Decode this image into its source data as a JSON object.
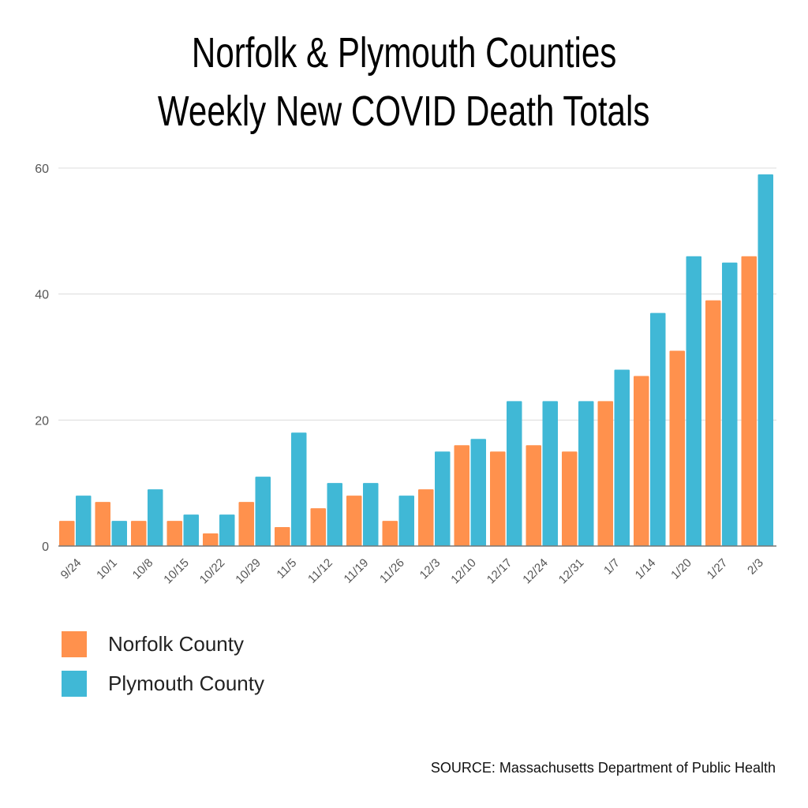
{
  "chart_data": {
    "type": "bar",
    "title": [
      "Norfolk & Plymouth Counties",
      "Weekly New COVID Death Totals"
    ],
    "xlabel": "",
    "ylabel": "",
    "ylim": [
      0,
      60
    ],
    "yticks": [
      0,
      20,
      40,
      60
    ],
    "grid": true,
    "legend_position": "bottom-left",
    "categories": [
      "9/24",
      "10/1",
      "10/8",
      "10/15",
      "10/22",
      "10/29",
      "11/5",
      "11/12",
      "11/19",
      "11/26",
      "12/3",
      "12/10",
      "12/17",
      "12/24",
      "12/31",
      "1/7",
      "1/14",
      "1/20",
      "1/27",
      "2/3"
    ],
    "series": [
      {
        "name": "Norfolk County",
        "color": "#FF914D",
        "values": [
          4,
          7,
          4,
          4,
          2,
          7,
          3,
          6,
          8,
          4,
          9,
          16,
          15,
          16,
          15,
          23,
          27,
          31,
          39,
          46
        ]
      },
      {
        "name": "Plymouth County",
        "color": "#40B8D6",
        "values": [
          8,
          4,
          9,
          5,
          5,
          11,
          18,
          10,
          10,
          8,
          15,
          17,
          23,
          23,
          23,
          28,
          37,
          46,
          45,
          59
        ]
      }
    ],
    "source": "SOURCE: Massachusetts Department of Public Health"
  }
}
